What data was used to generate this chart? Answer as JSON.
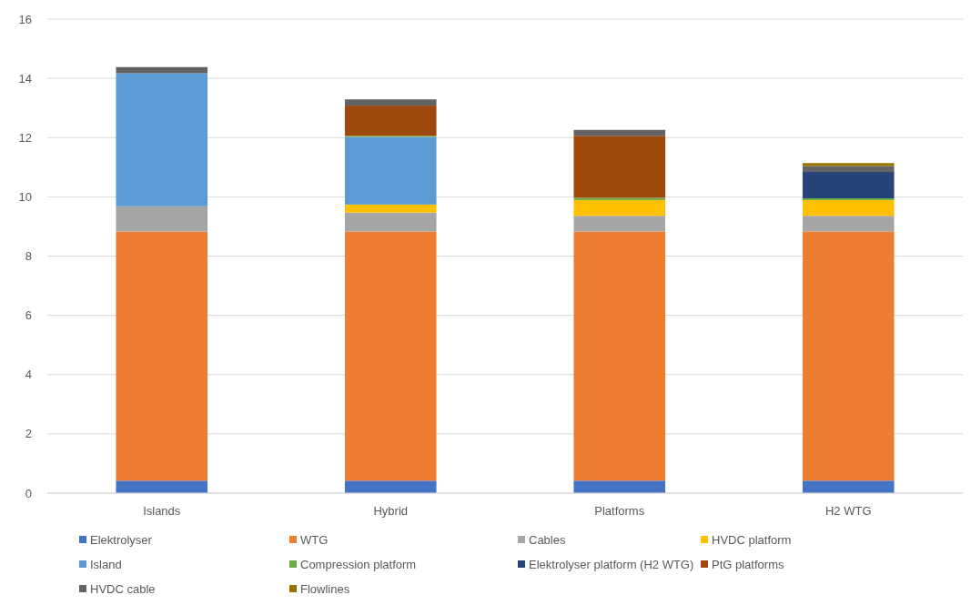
{
  "chart_data": {
    "type": "bar",
    "stacked": true,
    "categories": [
      "Islands",
      "Hybrid",
      "Platforms",
      "H2 WTG"
    ],
    "ylim": [
      0,
      16
    ],
    "yticks": [
      0,
      2,
      4,
      6,
      8,
      10,
      12,
      14,
      16
    ],
    "grid": "y",
    "legend": "bottom",
    "series": [
      {
        "name": "Elektrolyser",
        "color": "#4472c4",
        "values": [
          0.42,
          0.42,
          0.42,
          0.42
        ]
      },
      {
        "name": "WTG",
        "color": "#ed7d31",
        "values": [
          8.41,
          8.41,
          8.41,
          8.41
        ]
      },
      {
        "name": "Cables",
        "color": "#a5a5a5",
        "values": [
          0.85,
          0.64,
          0.53,
          0.53
        ]
      },
      {
        "name": "HVDC platform",
        "color": "#ffc000",
        "values": [
          null,
          0.27,
          0.53,
          0.53
        ]
      },
      {
        "name": "Island",
        "color": "#5b9bd5",
        "values": [
          4.49,
          2.28,
          null,
          null
        ]
      },
      {
        "name": "Compression platform",
        "color": "#70ad47",
        "values": [
          null,
          0.04,
          0.08,
          0.06
        ]
      },
      {
        "name": "Elektrolyser platform (H2 WTG)",
        "color": "#264478",
        "values": [
          null,
          null,
          null,
          0.89
        ]
      },
      {
        "name": "PtG platforms",
        "color": "#9e480e",
        "values": [
          null,
          1.02,
          2.09,
          null
        ]
      },
      {
        "name": "HVDC cable",
        "color": "#636363",
        "values": [
          0.21,
          0.21,
          0.2,
          0.2
        ]
      },
      {
        "name": "Flowlines",
        "color": "#997300",
        "values": [
          null,
          null,
          null,
          0.1
        ]
      }
    ]
  }
}
